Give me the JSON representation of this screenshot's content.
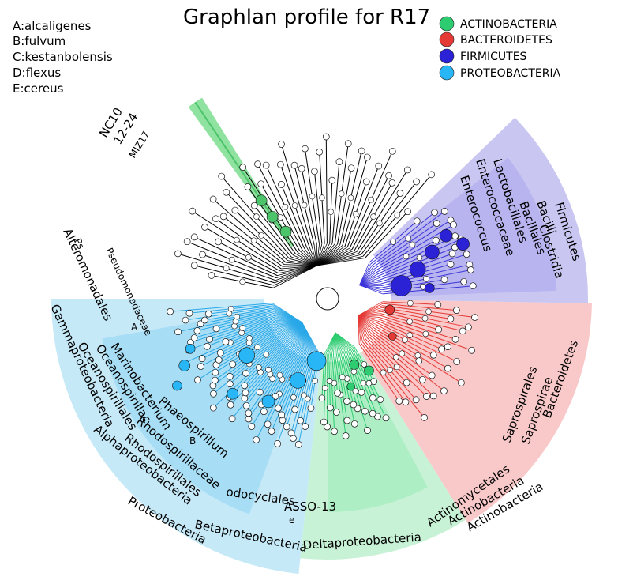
{
  "title": "Graphlan profile for R17",
  "key": [
    "A:alcaligenes",
    "B:fulvum",
    "C:kestanbolensis",
    "D:flexus",
    "E:cereus"
  ],
  "legend": [
    {
      "label": "ACTINOBACTERIA",
      "color": "#2ecc71"
    },
    {
      "label": "BACTEROIDETES",
      "color": "#e53935"
    },
    {
      "label": "FIRMICUTES",
      "color": "#2b22d6"
    },
    {
      "label": "PROTEOBACTERIA",
      "color": "#29b6f6"
    }
  ],
  "colors": {
    "actinobacteria_sector": "#c8f2d6",
    "actinobacteria_inner": "#9bebb8",
    "bacteroidetes_sector": "#f9c9c9",
    "firmicutes_sector": "#c9c6f2",
    "firmicutes_inner": "#a7a2ee",
    "proteobacteria_sector": "#c6e9f8",
    "proteobacteria_inner": "#8fd6f3",
    "nc10_band": "#8fe29f",
    "unassigned_branch": "#000000"
  },
  "labels": {
    "firmicutes": "Firmicutes",
    "clostridia": "Clostridia",
    "bacilli": "Bacilli",
    "bacillales": "Bacillales",
    "lactobacillales": "Lactobacillales",
    "enterococcaceae": "Enterococcaceae",
    "enterococcus": "Enterococcus",
    "bacteroidetes": "Bacteroidetes",
    "saprospirae": "Saprospirae",
    "saprospirales": "Saprospirales",
    "actinobacteria_phylum": "Actinobacteria",
    "actinobacteria_class": "Actinobacteria",
    "actinomycetales": "Actinomycetales",
    "proteobacteria": "Proteobacteria",
    "alphaproteobacteria": "Alphaproteobacteria",
    "betaproteobacteria": "Betaproteobacteria",
    "deltaproteobacteria": "Deltaproteobacteria",
    "gammaproteobacteria": "Gammaproteobacteria",
    "rhodospirillales": "Rhodospirillales",
    "rhodospirillaceae": "Rhodospirillaceae",
    "phaeospirillum": "Phaeospirillum",
    "oceanospirillales": "Oceanospirillales",
    "oceanospirillac": "Oceanospirillac",
    "marinobacterium": "Marinobacterium",
    "alteromonadales": "Alteromonadales",
    "pseudomonadaceae": "Pseudomonadaceae",
    "ps": "Ps",
    "odocyclales": "odocyclales",
    "asso13": "ASSO-13",
    "e_mark": "e",
    "nc10": "NC10",
    "n1224": "12-24",
    "mi217": "MIZ17",
    "marker_a": "A",
    "marker_b": "B"
  }
}
